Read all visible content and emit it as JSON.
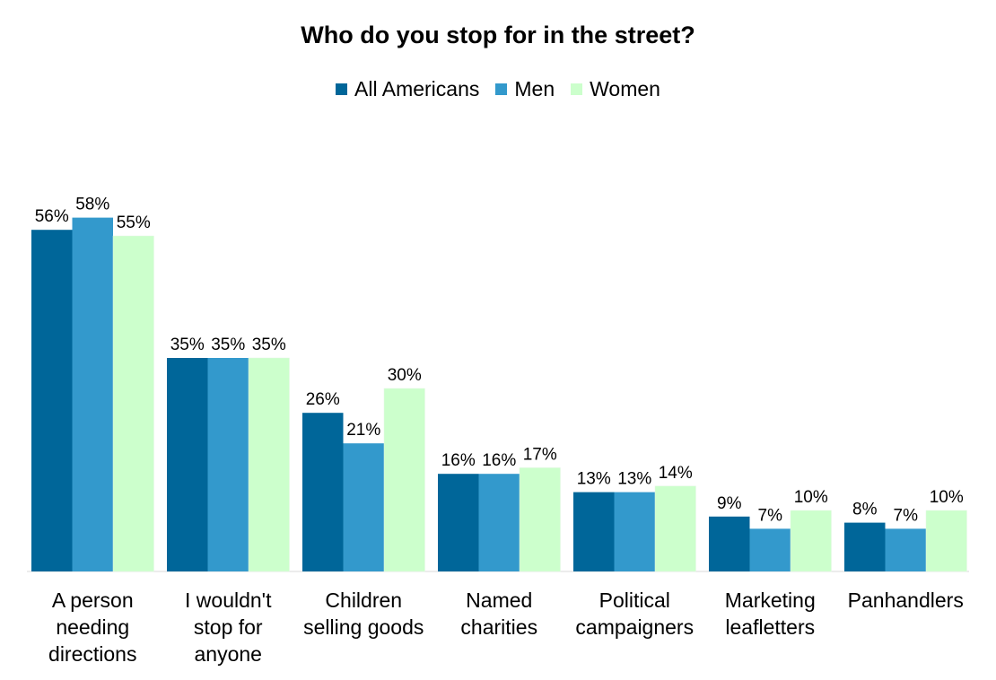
{
  "chart_data": {
    "type": "bar",
    "title": "Who do you stop for in the street?",
    "categories": [
      [
        "A person",
        "needing",
        "directions"
      ],
      [
        "I wouldn't",
        "stop for",
        "anyone"
      ],
      [
        "Children",
        "selling goods"
      ],
      [
        "Named",
        "charities"
      ],
      [
        "Political",
        "campaigners"
      ],
      [
        "Marketing",
        "leafletters"
      ],
      [
        "Panhandlers"
      ]
    ],
    "series": [
      {
        "name": "All Americans",
        "color": "#006699",
        "values": [
          56,
          35,
          26,
          16,
          13,
          9,
          8
        ]
      },
      {
        "name": "Men",
        "color": "#3399CC",
        "values": [
          58,
          35,
          21,
          16,
          13,
          7,
          7
        ]
      },
      {
        "name": "Women",
        "color": "#CCFFCC",
        "values": [
          55,
          35,
          30,
          17,
          14,
          10,
          10
        ]
      }
    ],
    "value_suffix": "%",
    "ylim": [
      0,
      60
    ],
    "grid": false,
    "legend_position": "top"
  }
}
